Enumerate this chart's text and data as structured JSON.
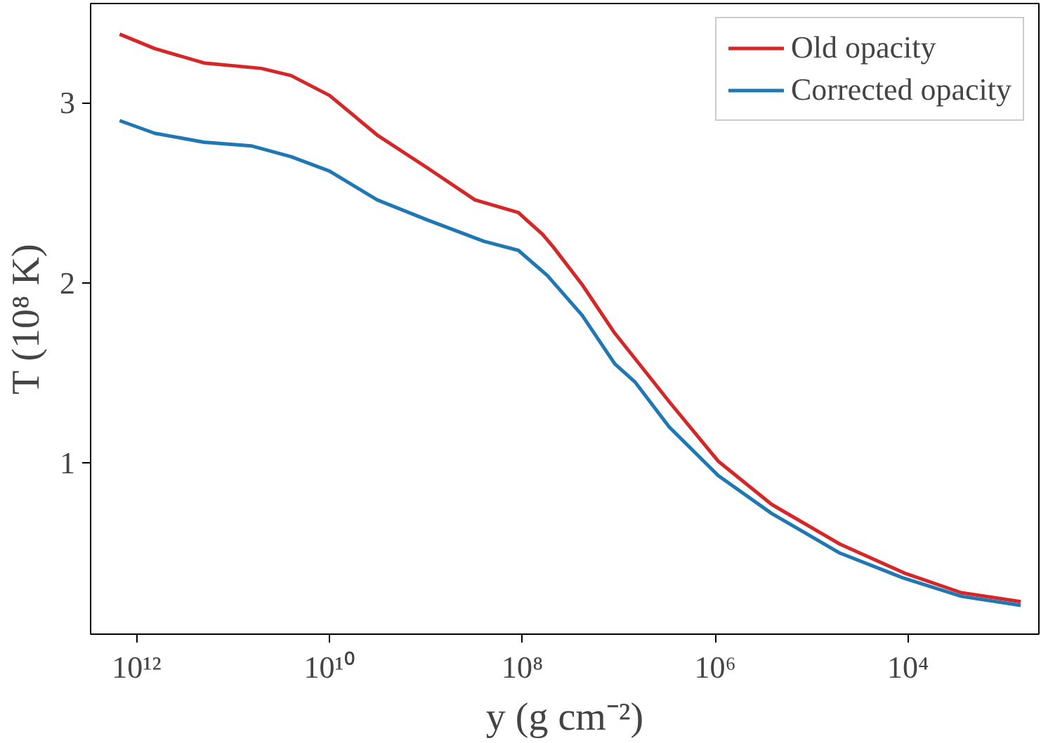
{
  "chart_data": {
    "type": "line",
    "xlabel": "y (g cm⁻²)",
    "ylabel": "T (10⁸ K)",
    "log": "x",
    "xlim": [
      3000000000000.0,
      440
    ],
    "xticks": [
      {
        "value": 1000000000000.0,
        "label": "10¹²"
      },
      {
        "value": 10000000000.0,
        "label": "10¹⁰"
      },
      {
        "value": 100000000.0,
        "label": "10⁸"
      },
      {
        "value": 1000000.0,
        "label": "10⁶"
      },
      {
        "value": 10000.0,
        "label": "10⁴"
      }
    ],
    "ylim": [
      0.05,
      3.55
    ],
    "yticks": [
      1,
      2,
      3
    ],
    "grid": false,
    "legend": "top right",
    "series": [
      {
        "name": "Old opacity",
        "color": "#d62728",
        "x": [
          1500000000000.0,
          650000000000.0,
          200000000000.0,
          51000000000.0,
          25000000000.0,
          10000000000.0,
          3200000000.0,
          980000000.0,
          310000000.0,
          110000000.0,
          87000000.0,
          62000000.0,
          48000000.0,
          24000000.0,
          11000000.0,
          6800000.0,
          3000000.0,
          930000.0,
          260000.0,
          51000.0,
          11000.0,
          2800.0,
          680
        ],
        "values": [
          3.38,
          3.3,
          3.22,
          3.19,
          3.15,
          3.04,
          2.82,
          2.64,
          2.46,
          2.39,
          2.34,
          2.27,
          2.2,
          1.99,
          1.72,
          1.58,
          1.34,
          1.01,
          0.77,
          0.55,
          0.39,
          0.28,
          0.23
        ]
      },
      {
        "name": "Corrected opacity",
        "color": "#1f77b4",
        "x": [
          1500000000000.0,
          650000000000.0,
          200000000000.0,
          65000000000.0,
          25000000000.0,
          10000000000.0,
          3200000000.0,
          980000000.0,
          250000000.0,
          110000000.0,
          55000000.0,
          24000000.0,
          11000000.0,
          6800000.0,
          3000000.0,
          930000.0,
          260000.0,
          51000.0,
          11000.0,
          2800.0,
          680
        ],
        "values": [
          2.9,
          2.83,
          2.78,
          2.76,
          2.7,
          2.62,
          2.46,
          2.35,
          2.23,
          2.18,
          2.04,
          1.82,
          1.55,
          1.45,
          1.2,
          0.93,
          0.72,
          0.5,
          0.36,
          0.26,
          0.21
        ]
      }
    ]
  }
}
